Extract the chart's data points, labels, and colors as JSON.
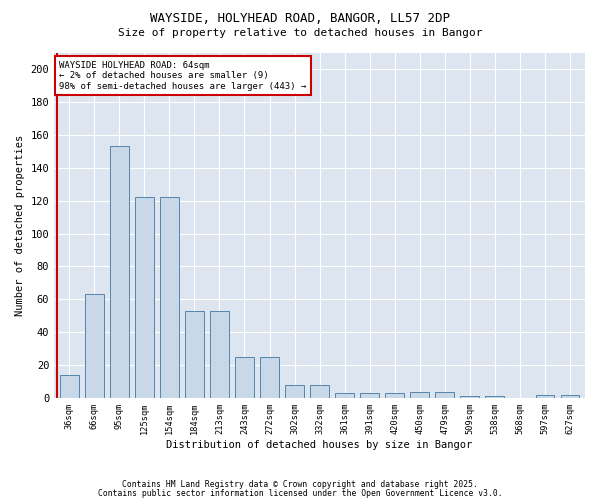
{
  "title1": "WAYSIDE, HOLYHEAD ROAD, BANGOR, LL57 2DP",
  "title2": "Size of property relative to detached houses in Bangor",
  "xlabel": "Distribution of detached houses by size in Bangor",
  "ylabel": "Number of detached properties",
  "categories": [
    "36sqm",
    "66sqm",
    "95sqm",
    "125sqm",
    "154sqm",
    "184sqm",
    "213sqm",
    "243sqm",
    "272sqm",
    "302sqm",
    "332sqm",
    "361sqm",
    "391sqm",
    "420sqm",
    "450sqm",
    "479sqm",
    "509sqm",
    "538sqm",
    "568sqm",
    "597sqm",
    "627sqm"
  ],
  "bar_values": [
    14,
    63,
    153,
    122,
    122,
    53,
    53,
    25,
    25,
    8,
    8,
    3,
    3,
    3,
    4,
    4,
    1,
    1,
    0,
    2,
    2
  ],
  "property_line_x": 0,
  "annotation_text": "WAYSIDE HOLYHEAD ROAD: 64sqm\n← 2% of detached houses are smaller (9)\n98% of semi-detached houses are larger (443) →",
  "bar_color": "#c8d8e8",
  "bar_edge_color": "#5585aa",
  "line_color": "#cc0000",
  "annotation_box_color": "#cc0000",
  "bg_color": "#dde6f0",
  "grid_color": "#ffffff",
  "footer1": "Contains HM Land Registry data © Crown copyright and database right 2025.",
  "footer2": "Contains public sector information licensed under the Open Government Licence v3.0.",
  "ylim": [
    0,
    210
  ],
  "yticks": [
    0,
    20,
    40,
    60,
    80,
    100,
    120,
    140,
    160,
    180,
    200
  ]
}
